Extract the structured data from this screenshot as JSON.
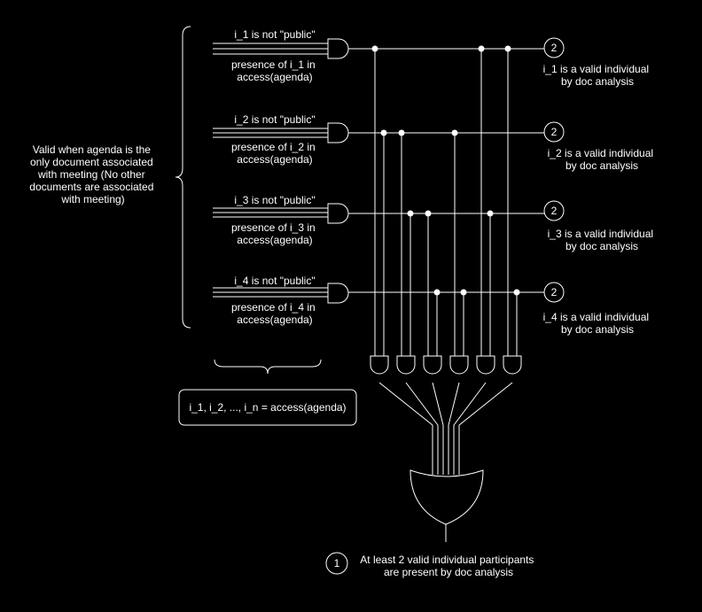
{
  "colors": {
    "background": "#000000",
    "stroke": "#ffffff",
    "text": "#ffffff"
  },
  "bracket_note": {
    "lines": [
      "Valid when agenda is the",
      "only document associated",
      "with meeting (No other",
      "documents are associated",
      "with meeting)"
    ]
  },
  "access_box": {
    "label": "i_1, i_2, ..., i_n = access(agenda)"
  },
  "rows": [
    {
      "top_label": "i_1 is not \"public\"",
      "bottom_label": [
        "presence of i_1 in",
        "access(agenda)"
      ],
      "badge": "2",
      "result": [
        "i_1 is a valid individual",
        "by doc analysis"
      ]
    },
    {
      "top_label": "i_2 is not \"public\"",
      "bottom_label": [
        "presence of i_2 in",
        "access(agenda)"
      ],
      "badge": "2",
      "result": [
        "i_2 is a valid individual",
        "by doc analysis"
      ]
    },
    {
      "top_label": "i_3 is not \"public\"",
      "bottom_label": [
        "presence of i_3 in",
        "access(agenda)"
      ],
      "badge": "2",
      "result": [
        "i_3 is a valid individual",
        "by doc analysis"
      ]
    },
    {
      "top_label": "i_4 is not \"public\"",
      "bottom_label": [
        "presence of i_4 in",
        "access(agenda)"
      ],
      "badge": "2",
      "result": [
        "i_4 is a valid individual",
        "by doc analysis"
      ]
    }
  ],
  "pair_gates": [
    {
      "inputs": [
        "i_1",
        "i_2"
      ]
    },
    {
      "inputs": [
        "i_2",
        "i_3"
      ]
    },
    {
      "inputs": [
        "i_3",
        "i_4"
      ]
    },
    {
      "inputs": [
        "i_2",
        "i_4"
      ]
    },
    {
      "inputs": [
        "i_1",
        "i_3"
      ]
    },
    {
      "inputs": [
        "i_1",
        "i_4"
      ]
    }
  ],
  "output": {
    "badge": "1",
    "lines": [
      "At least 2 valid individual participants",
      "are present by doc analysis"
    ]
  }
}
